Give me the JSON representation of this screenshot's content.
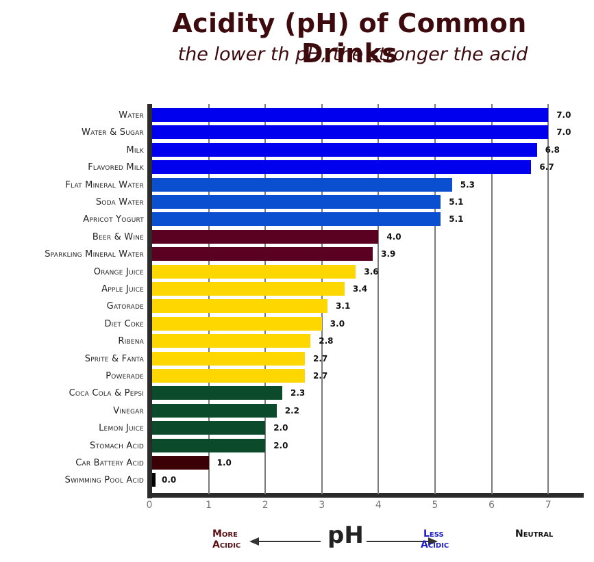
{
  "header": {
    "title": "Acidity (pH) of Common Drinks",
    "subtitle": "the lower th pH, the stronger the acid"
  },
  "footer": {
    "more_acidic_line1": "More",
    "more_acidic_line2": "Acidic",
    "axis_label": "pH",
    "less_acidic_line1": "Less",
    "less_acidic_line2": "Acidic",
    "neutral": "Neutral",
    "colors": {
      "more_acidic": "#5a0f14",
      "less_acidic": "#1a1acc",
      "neutral": "#111111"
    }
  },
  "chart_data": {
    "type": "bar",
    "orientation": "horizontal",
    "title": "Acidity (pH) of Common Drinks",
    "subtitle": "the lower th pH, the stronger the acid",
    "xlabel": "pH",
    "ylabel": "",
    "xlim": [
      0,
      7.5
    ],
    "xticks": [
      "0",
      "1",
      "2",
      "3",
      "4",
      "5",
      "6",
      "7"
    ],
    "grid": "vertical",
    "annotations": [
      "More Acidic ←",
      "→ Less Acidic",
      "Neutral"
    ],
    "categories": [
      "Water",
      "Water & Sugar",
      "Milk",
      "Flavored Milk",
      "Flat Mineral Water",
      "Soda Water",
      "Apricot Yogurt",
      "Beer & Wine",
      "Sparkling Mineral Water",
      "Orange Juice",
      "Apple Juice",
      "Gatorade",
      "Diet Coke",
      "Ribena",
      "Sprite & Fanta",
      "Powerade",
      "Coca Cola & Pepsi",
      "Vinegar",
      "Lemon Juice",
      "Stomach Acid",
      "Car Battery Acid",
      "Swimming Pool Acid"
    ],
    "values": [
      7.0,
      7.0,
      6.8,
      6.7,
      5.3,
      5.1,
      5.1,
      4.0,
      3.9,
      3.6,
      3.4,
      3.1,
      3.0,
      2.8,
      2.7,
      2.7,
      2.3,
      2.2,
      2.0,
      2.0,
      1.0,
      0.0
    ],
    "value_labels": [
      "7.0",
      "7.0",
      "6.8",
      "6.7",
      "5.3",
      "5.1",
      "5.1",
      "4.0",
      "3.9",
      "3.6",
      "3.4",
      "3.1",
      "3.0",
      "2.8",
      "2.7",
      "2.7",
      "2.3",
      "2.2",
      "2.0",
      "2.0",
      "1.0",
      "0.0"
    ],
    "colors": [
      "#0000ee",
      "#0000ee",
      "#0000ee",
      "#0000ee",
      "#0a4fcf",
      "#0a4fcf",
      "#0a4fcf",
      "#5a0020",
      "#5a0020",
      "#ffd700",
      "#ffd700",
      "#ffd700",
      "#ffd700",
      "#ffd700",
      "#ffd700",
      "#ffd700",
      "#0b4a2a",
      "#0b4a2a",
      "#0b4a2a",
      "#0b4a2a",
      "#3a0005",
      "#000000"
    ]
  }
}
